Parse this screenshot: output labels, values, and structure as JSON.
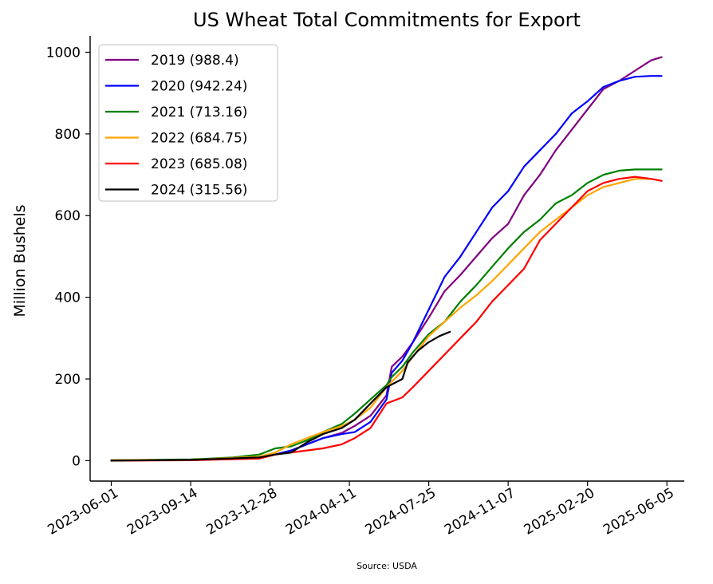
{
  "chart_data": {
    "type": "line",
    "title": "US Wheat Total Commitments for Export",
    "xlabel": "",
    "ylabel": "Million Bushels",
    "source": "Source: USDA",
    "x_ticks": [
      "2023-06-01",
      "2023-09-14",
      "2023-12-28",
      "2024-04-11",
      "2024-07-25",
      "2024-11-07",
      "2025-02-20",
      "2025-06-05"
    ],
    "xlim": [
      "2023-05-04",
      "2025-06-28"
    ],
    "y_ticks": [
      0,
      200,
      400,
      600,
      800,
      1000
    ],
    "ylim": [
      -50,
      1040
    ],
    "grid": false,
    "legend_position": "top-left",
    "series": [
      {
        "name": "2019 (988.4)",
        "color": "#800080",
        "points": [
          [
            "2023-06-01",
            1
          ],
          [
            "2023-09-14",
            2
          ],
          [
            "2023-12-14",
            6
          ],
          [
            "2024-01-04",
            15
          ],
          [
            "2024-01-25",
            25
          ],
          [
            "2024-02-15",
            40
          ],
          [
            "2024-03-07",
            55
          ],
          [
            "2024-04-01",
            68
          ],
          [
            "2024-04-18",
            85
          ],
          [
            "2024-05-09",
            110
          ],
          [
            "2024-05-30",
            160
          ],
          [
            "2024-06-06",
            230
          ],
          [
            "2024-06-20",
            255
          ],
          [
            "2024-07-04",
            290
          ],
          [
            "2024-07-25",
            350
          ],
          [
            "2024-08-15",
            415
          ],
          [
            "2024-09-05",
            455
          ],
          [
            "2024-09-26",
            500
          ],
          [
            "2024-10-17",
            545
          ],
          [
            "2024-11-07",
            580
          ],
          [
            "2024-11-28",
            650
          ],
          [
            "2024-12-19",
            700
          ],
          [
            "2025-01-09",
            760
          ],
          [
            "2025-01-30",
            810
          ],
          [
            "2025-02-20",
            860
          ],
          [
            "2025-03-13",
            910
          ],
          [
            "2025-04-03",
            930
          ],
          [
            "2025-04-24",
            955
          ],
          [
            "2025-05-15",
            980
          ],
          [
            "2025-05-29",
            988
          ]
        ]
      },
      {
        "name": "2020 (942.24)",
        "color": "#0000ff",
        "points": [
          [
            "2023-06-01",
            1
          ],
          [
            "2023-09-14",
            1
          ],
          [
            "2023-12-14",
            8
          ],
          [
            "2024-01-04",
            15
          ],
          [
            "2024-01-25",
            25
          ],
          [
            "2024-02-15",
            40
          ],
          [
            "2024-03-07",
            55
          ],
          [
            "2024-04-01",
            65
          ],
          [
            "2024-04-18",
            70
          ],
          [
            "2024-05-09",
            95
          ],
          [
            "2024-05-30",
            150
          ],
          [
            "2024-06-06",
            215
          ],
          [
            "2024-06-20",
            245
          ],
          [
            "2024-07-04",
            290
          ],
          [
            "2024-07-25",
            370
          ],
          [
            "2024-08-15",
            450
          ],
          [
            "2024-09-05",
            500
          ],
          [
            "2024-09-26",
            560
          ],
          [
            "2024-10-17",
            620
          ],
          [
            "2024-11-07",
            660
          ],
          [
            "2024-11-28",
            720
          ],
          [
            "2024-12-19",
            760
          ],
          [
            "2025-01-09",
            800
          ],
          [
            "2025-01-30",
            850
          ],
          [
            "2025-02-20",
            880
          ],
          [
            "2025-03-13",
            915
          ],
          [
            "2025-04-03",
            930
          ],
          [
            "2025-04-24",
            940
          ],
          [
            "2025-05-15",
            942
          ],
          [
            "2025-05-29",
            942
          ]
        ]
      },
      {
        "name": "2021 (713.16)",
        "color": "#008000",
        "points": [
          [
            "2023-06-01",
            1
          ],
          [
            "2023-09-14",
            3
          ],
          [
            "2023-11-09",
            8
          ],
          [
            "2023-12-14",
            15
          ],
          [
            "2024-01-04",
            30
          ],
          [
            "2024-01-25",
            35
          ],
          [
            "2024-02-15",
            50
          ],
          [
            "2024-03-07",
            70
          ],
          [
            "2024-04-01",
            90
          ],
          [
            "2024-04-18",
            115
          ],
          [
            "2024-05-09",
            150
          ],
          [
            "2024-05-30",
            185
          ],
          [
            "2024-06-06",
            205
          ],
          [
            "2024-06-20",
            230
          ],
          [
            "2024-07-04",
            265
          ],
          [
            "2024-07-25",
            310
          ],
          [
            "2024-08-15",
            340
          ],
          [
            "2024-09-05",
            390
          ],
          [
            "2024-09-26",
            430
          ],
          [
            "2024-10-17",
            475
          ],
          [
            "2024-11-07",
            520
          ],
          [
            "2024-11-28",
            560
          ],
          [
            "2024-12-19",
            590
          ],
          [
            "2025-01-09",
            630
          ],
          [
            "2025-01-30",
            650
          ],
          [
            "2025-02-20",
            680
          ],
          [
            "2025-03-13",
            700
          ],
          [
            "2025-04-03",
            710
          ],
          [
            "2025-04-24",
            713
          ],
          [
            "2025-05-15",
            713
          ],
          [
            "2025-05-29",
            713
          ]
        ]
      },
      {
        "name": "2022 (684.75)",
        "color": "#ffa500",
        "points": [
          [
            "2023-06-01",
            1
          ],
          [
            "2023-09-14",
            2
          ],
          [
            "2023-12-14",
            10
          ],
          [
            "2024-01-04",
            20
          ],
          [
            "2024-01-25",
            40
          ],
          [
            "2024-02-15",
            55
          ],
          [
            "2024-03-07",
            70
          ],
          [
            "2024-04-01",
            85
          ],
          [
            "2024-04-18",
            100
          ],
          [
            "2024-05-09",
            130
          ],
          [
            "2024-05-30",
            180
          ],
          [
            "2024-06-20",
            220
          ],
          [
            "2024-07-04",
            255
          ],
          [
            "2024-07-25",
            305
          ],
          [
            "2024-08-15",
            340
          ],
          [
            "2024-09-05",
            375
          ],
          [
            "2024-09-26",
            405
          ],
          [
            "2024-10-17",
            440
          ],
          [
            "2024-11-07",
            480
          ],
          [
            "2024-11-28",
            520
          ],
          [
            "2024-12-19",
            560
          ],
          [
            "2025-01-09",
            590
          ],
          [
            "2025-01-30",
            620
          ],
          [
            "2025-02-20",
            650
          ],
          [
            "2025-03-13",
            670
          ],
          [
            "2025-04-03",
            680
          ],
          [
            "2025-04-24",
            690
          ],
          [
            "2025-05-15",
            690
          ],
          [
            "2025-05-29",
            685
          ]
        ]
      },
      {
        "name": "2023 (685.08)",
        "color": "#ff0000",
        "points": [
          [
            "2023-06-01",
            0
          ],
          [
            "2023-09-14",
            1
          ],
          [
            "2023-12-14",
            5
          ],
          [
            "2024-01-04",
            15
          ],
          [
            "2024-01-25",
            20
          ],
          [
            "2024-02-15",
            25
          ],
          [
            "2024-03-07",
            30
          ],
          [
            "2024-04-01",
            40
          ],
          [
            "2024-04-18",
            55
          ],
          [
            "2024-05-09",
            80
          ],
          [
            "2024-05-30",
            140
          ],
          [
            "2024-06-20",
            155
          ],
          [
            "2024-07-04",
            180
          ],
          [
            "2024-07-25",
            220
          ],
          [
            "2024-08-15",
            260
          ],
          [
            "2024-09-05",
            300
          ],
          [
            "2024-09-26",
            340
          ],
          [
            "2024-10-17",
            390
          ],
          [
            "2024-11-07",
            430
          ],
          [
            "2024-11-28",
            470
          ],
          [
            "2024-12-19",
            540
          ],
          [
            "2025-01-09",
            580
          ],
          [
            "2025-01-30",
            620
          ],
          [
            "2025-02-20",
            660
          ],
          [
            "2025-03-13",
            680
          ],
          [
            "2025-04-03",
            690
          ],
          [
            "2025-04-24",
            695
          ],
          [
            "2025-05-15",
            690
          ],
          [
            "2025-05-29",
            685
          ]
        ]
      },
      {
        "name": "2024 (315.56)",
        "color": "#000000",
        "points": [
          [
            "2023-06-01",
            0
          ],
          [
            "2023-09-14",
            2
          ],
          [
            "2023-12-14",
            8
          ],
          [
            "2024-01-04",
            15
          ],
          [
            "2024-01-25",
            20
          ],
          [
            "2024-02-15",
            45
          ],
          [
            "2024-03-07",
            65
          ],
          [
            "2024-04-01",
            80
          ],
          [
            "2024-04-18",
            100
          ],
          [
            "2024-05-09",
            140
          ],
          [
            "2024-05-30",
            180
          ],
          [
            "2024-06-20",
            200
          ],
          [
            "2024-06-27",
            240
          ],
          [
            "2024-07-11",
            270
          ],
          [
            "2024-07-25",
            290
          ],
          [
            "2024-08-08",
            305
          ],
          [
            "2024-08-22",
            315.56
          ]
        ]
      }
    ]
  }
}
